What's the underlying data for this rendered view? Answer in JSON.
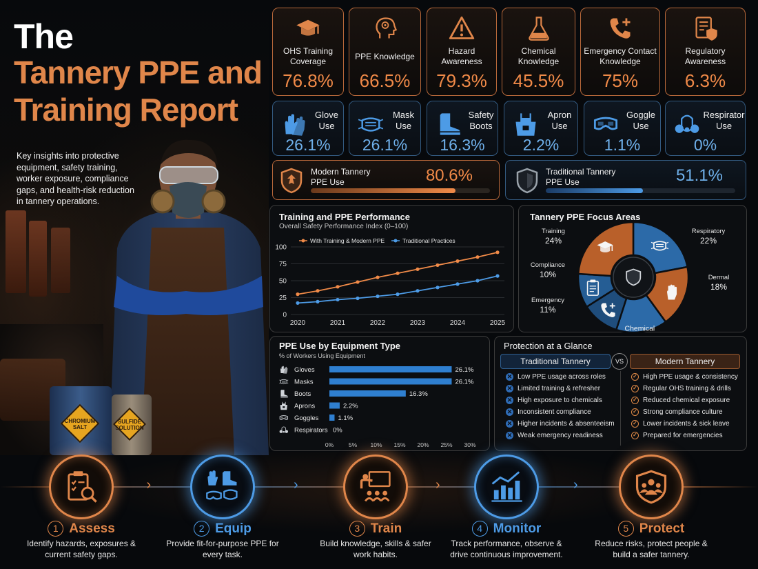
{
  "title": {
    "line1": "The",
    "line2": "Tannery PPE and Training Report",
    "intro": "Key insights into protective equipment, safety training, worker exposure, compliance gaps, and health-risk reduction in tannery operations."
  },
  "hero_signs": {
    "left": "CHROMIUM SALT",
    "right": "SULFIDE SOLUTION"
  },
  "knowledge_cards": [
    {
      "label": "OHS Training Coverage",
      "value": "76.8%",
      "icon": "graduation-cap-icon"
    },
    {
      "label": "PPE Knowledge",
      "value": "66.5%",
      "icon": "head-brain-icon"
    },
    {
      "label": "Hazard Awareness",
      "value": "79.3%",
      "icon": "warning-triangle-icon"
    },
    {
      "label": "Chemical Knowledge",
      "value": "45.5%",
      "icon": "flask-icon"
    },
    {
      "label": "Emergency Contact Knowledge",
      "value": "75%",
      "icon": "phone-plus-icon"
    },
    {
      "label": "Regulatory Awareness",
      "value": "6.3%",
      "icon": "document-shield-icon"
    }
  ],
  "use_cards": [
    {
      "label": "Glove Use",
      "value": "26.1%",
      "icon": "gloves-icon"
    },
    {
      "label": "Mask Use",
      "value": "26.1%",
      "icon": "mask-icon"
    },
    {
      "label": "Safety Boots",
      "value": "16.3%",
      "icon": "boot-icon"
    },
    {
      "label": "Apron Use",
      "value": "2.2%",
      "icon": "apron-icon"
    },
    {
      "label": "Goggle Use",
      "value": "1.1%",
      "icon": "goggles-icon"
    },
    {
      "label": "Respirator Use",
      "value": "0%",
      "icon": "respirator-icon"
    }
  ],
  "ppe_use": {
    "modern": {
      "label": "Modern Tannery PPE Use",
      "value": "80.6%",
      "fraction": 0.806,
      "color": "#e0864a"
    },
    "traditional": {
      "label": "Traditional Tannery PPE Use",
      "value": "51.1%",
      "fraction": 0.511,
      "color": "#4d9be6"
    }
  },
  "line_panel": {
    "title": "Training and PPE Performance",
    "subtitle": "Overall Safety Performance Index (0–100)"
  },
  "pie_panel": {
    "title": "Tannery PPE Focus Areas"
  },
  "bar_panel": {
    "title": "PPE Use by Equipment Type",
    "subtitle": "% of Workers Using Equipment"
  },
  "compare": {
    "title": "Protection at a Glance",
    "left_head": "Traditional Tannery",
    "vs": "VS",
    "right_head": "Modern Tannery",
    "left_items": [
      "Low PPE usage across roles",
      "Limited training & refresher",
      "High exposure to chemicals",
      "Inconsistent compliance",
      "Higher incidents & absenteeism",
      "Weak emergency readiness"
    ],
    "right_items": [
      "High PPE usage & consistency",
      "Regular OHS training & drills",
      "Reduced chemical exposure",
      "Strong compliance culture",
      "Lower incidents & sick leave",
      "Prepared for emergencies"
    ]
  },
  "steps": [
    {
      "num": "1",
      "title": "Assess",
      "desc": "Identify hazards, exposures & current safety gaps.",
      "color": "#e0864a",
      "icon": "clipboard-magnifier-icon"
    },
    {
      "num": "2",
      "title": "Equip",
      "desc": "Provide fit-for-purpose PPE for every task.",
      "color": "#4d9be6",
      "icon": "ppe-kit-icon"
    },
    {
      "num": "3",
      "title": "Train",
      "desc": "Build knowledge, skills & safer work habits.",
      "color": "#e0864a",
      "icon": "trainer-icon"
    },
    {
      "num": "4",
      "title": "Monitor",
      "desc": "Track performance, observe & drive continuous improvement.",
      "color": "#4d9be6",
      "icon": "bar-chart-trend-icon"
    },
    {
      "num": "5",
      "title": "Protect",
      "desc": "Reduce risks, protect people & build a safer tannery.",
      "color": "#e0864a",
      "icon": "shield-people-icon"
    }
  ],
  "chart_data": [
    {
      "type": "line",
      "title": "Training and PPE Performance",
      "subtitle": "Overall Safety Performance Index (0–100)",
      "x": [
        2020,
        2020.5,
        2021,
        2021.5,
        2022,
        2022.5,
        2023,
        2023.5,
        2024,
        2024.5,
        2025
      ],
      "x_ticks": [
        "2020",
        "2021",
        "2022",
        "2023",
        "2024",
        "2025"
      ],
      "ylim": [
        0,
        100
      ],
      "y_ticks": [
        "0",
        "25",
        "50",
        "75",
        "100"
      ],
      "grid": true,
      "legend": "top",
      "series": [
        {
          "name": "With Training & Modern PPE",
          "color": "#f08a48",
          "values": [
            30,
            35,
            41,
            48,
            55,
            61,
            67,
            73,
            79,
            85,
            92
          ]
        },
        {
          "name": "Traditional Practices",
          "color": "#4d9be6",
          "values": [
            17,
            19,
            22,
            24,
            27,
            30,
            35,
            40,
            45,
            50,
            57
          ]
        }
      ]
    },
    {
      "type": "pie",
      "title": "Tannery PPE Focus Areas",
      "slices": [
        {
          "label": "Respiratory",
          "value": 22,
          "display": "22%",
          "color": "#2c6aa8",
          "icon": "mask-icon"
        },
        {
          "label": "Dermal",
          "value": 18,
          "display": "18%",
          "color": "#b9602a",
          "icon": "hand-icon"
        },
        {
          "label": "Chemical",
          "value": 15,
          "display": "15%",
          "color": "#2c6aa8",
          "icon": ""
        },
        {
          "label": "Emergency",
          "value": 11,
          "display": "11%",
          "color": "#1f4d7c",
          "icon": "phone-plus-icon"
        },
        {
          "label": "Compliance",
          "value": 10,
          "display": "10%",
          "color": "#255d94",
          "icon": "clipboard-icon"
        },
        {
          "label": "Training",
          "value": 24,
          "display": "24%",
          "color": "#b9602a",
          "icon": "graduation-cap-icon"
        }
      ],
      "center_icon": "shield-icon"
    },
    {
      "type": "bar",
      "orientation": "horizontal",
      "title": "PPE Use by Equipment Type",
      "subtitle": "% of Workers Using Equipment",
      "categories": [
        "Gloves",
        "Masks",
        "Boots",
        "Aprons",
        "Goggles",
        "Respirators"
      ],
      "values": [
        26.1,
        26.1,
        16.3,
        2.2,
        1.1,
        0
      ],
      "labels": [
        "26.1%",
        "26.1%",
        "16.3%",
        "2.2%",
        "1.1%",
        "0%"
      ],
      "xlim": [
        0,
        30
      ],
      "x_ticks": [
        "0%",
        "5%",
        "10%",
        "15%",
        "20%",
        "25%",
        "30%"
      ],
      "color": "#2f7fd0"
    }
  ]
}
